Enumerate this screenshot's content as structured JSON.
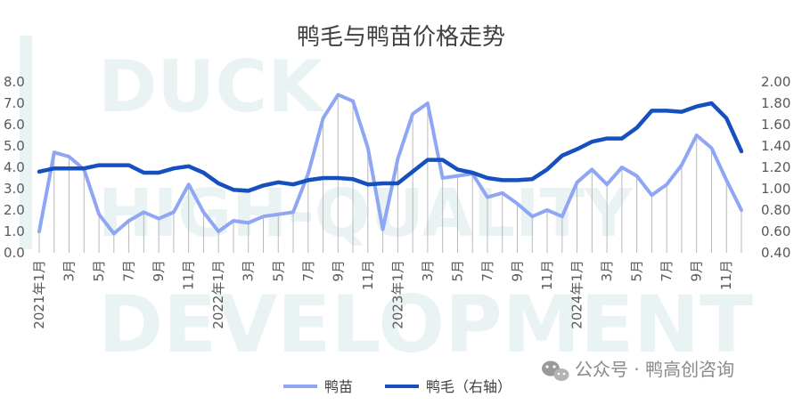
{
  "chart_data": {
    "type": "line",
    "title": "鸭毛与鸭苗价格走势",
    "categories": [
      "2021年1月",
      "2月",
      "3月",
      "4月",
      "5月",
      "6月",
      "7月",
      "8月",
      "9月",
      "10月",
      "11月",
      "12月",
      "2022年1月",
      "2月",
      "3月",
      "4月",
      "5月",
      "6月",
      "7月",
      "8月",
      "9月",
      "10月",
      "11月",
      "12月",
      "2023年1月",
      "2月",
      "3月",
      "4月",
      "5月",
      "6月",
      "7月",
      "8月",
      "9月",
      "10月",
      "11月",
      "12月",
      "2024年1月",
      "2月",
      "3月",
      "4月",
      "5月",
      "6月",
      "7月",
      "8月",
      "9月",
      "10月",
      "11月",
      "12月"
    ],
    "x_tick_labels": [
      "2021年1月",
      "",
      "3月",
      "",
      "5月",
      "",
      "7月",
      "",
      "9月",
      "",
      "11月",
      "",
      "2022年1月",
      "",
      "3月",
      "",
      "5月",
      "",
      "7月",
      "",
      "9月",
      "",
      "11月",
      "",
      "2023年1月",
      "",
      "3月",
      "",
      "5月",
      "",
      "7月",
      "",
      "9月",
      "",
      "11月",
      "",
      "2024年1月",
      "",
      "3月",
      "",
      "5月",
      "",
      "7月",
      "",
      "9月",
      "",
      "11月",
      ""
    ],
    "left_axis": {
      "ylim": [
        0,
        8
      ],
      "ticks": [
        "0.0",
        "1.0",
        "2.0",
        "3.0",
        "4.0",
        "5.0",
        "6.0",
        "7.0",
        "8.0"
      ]
    },
    "right_axis": {
      "ylim": [
        0.4,
        2.0
      ],
      "ticks": [
        "0.40",
        "0.60",
        "0.80",
        "1.00",
        "1.20",
        "1.40",
        "1.60",
        "1.80",
        "2.00"
      ]
    },
    "series": [
      {
        "name": "鸭苗",
        "axis": "left",
        "color": "#8ea6f4",
        "values": [
          1.0,
          4.7,
          4.5,
          3.9,
          1.8,
          0.9,
          1.5,
          1.9,
          1.6,
          1.9,
          3.2,
          1.9,
          1.0,
          1.5,
          1.4,
          1.7,
          1.8,
          1.9,
          3.7,
          6.3,
          7.4,
          7.1,
          4.9,
          1.1,
          4.4,
          6.5,
          7.0,
          3.5,
          3.6,
          3.7,
          2.6,
          2.8,
          2.3,
          1.7,
          2.0,
          1.7,
          3.3,
          3.9,
          3.2,
          4.0,
          3.6,
          2.7,
          3.2,
          4.1,
          5.5,
          4.9,
          3.4,
          2.0
        ]
      },
      {
        "name": "鸭毛（右轴）",
        "axis": "right",
        "color": "#1650c0",
        "values": [
          1.16,
          1.19,
          1.19,
          1.19,
          1.22,
          1.22,
          1.22,
          1.15,
          1.15,
          1.19,
          1.21,
          1.15,
          1.05,
          0.99,
          0.98,
          1.03,
          1.06,
          1.04,
          1.08,
          1.1,
          1.1,
          1.09,
          1.04,
          1.05,
          1.05,
          1.16,
          1.27,
          1.27,
          1.18,
          1.15,
          1.1,
          1.08,
          1.08,
          1.09,
          1.18,
          1.31,
          1.37,
          1.44,
          1.47,
          1.47,
          1.57,
          1.73,
          1.73,
          1.72,
          1.77,
          1.8,
          1.66,
          1.35
        ]
      }
    ],
    "legend_position": "bottom",
    "grid": false,
    "drop_lines": true
  },
  "watermark": {
    "line1": "DUCK",
    "line2": "HIGH-QUALITY",
    "line3": "DEVELOPMENT"
  },
  "source_badge": {
    "icon": "wechat-icon",
    "text": "公众号 · 鸭高创咨询"
  }
}
